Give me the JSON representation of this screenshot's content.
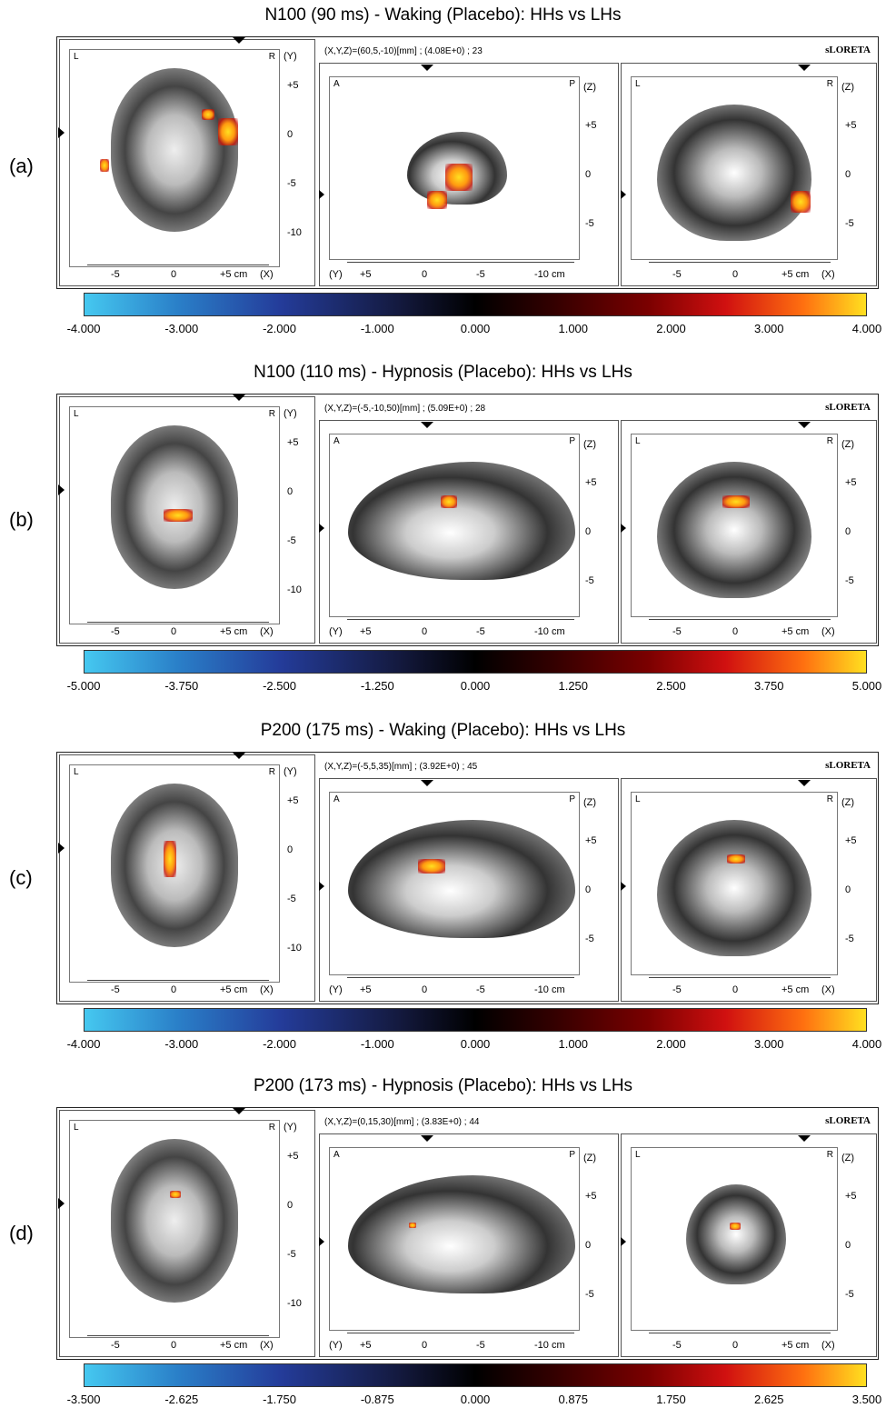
{
  "figure": {
    "panels": [
      {
        "label": "(a)",
        "title": "N100 (90 ms) - Waking (Placebo): HHs vs LHs",
        "coords": "(X,Y,Z)=(60,5,-10)[mm] ; (4.08E+0) ; 23",
        "software": "sLORETA",
        "colorbar_ticks": [
          "-4.000",
          "-3.000",
          "-2.000",
          "-1.000",
          "0.000",
          "1.000",
          "2.000",
          "3.000",
          "4.000"
        ],
        "axial": {
          "corner_left": "L",
          "corner_right": "R",
          "axis_y": "(Y)",
          "y_ticks": [
            "+5",
            "0",
            "-5",
            "-10"
          ],
          "x_ticks": [
            "-5",
            "0",
            "+5 cm",
            "(X)"
          ]
        },
        "sagittal": {
          "corner_left": "A",
          "corner_right": "P",
          "axis_z": "(Z)",
          "z_ticks": [
            "+5",
            "0",
            "-5"
          ],
          "y_ticks": [
            "(Y)",
            "+5",
            "0",
            "-5",
            "-10 cm"
          ]
        },
        "coronal": {
          "corner_left": "L",
          "corner_right": "R",
          "axis_z": "(Z)",
          "z_ticks": [
            "+5",
            "0",
            "-5"
          ],
          "x_ticks": [
            "-5",
            "0",
            "+5 cm",
            "(X)"
          ]
        }
      },
      {
        "label": "(b)",
        "title": "N100 (110 ms) - Hypnosis (Placebo): HHs vs LHs",
        "coords": "(X,Y,Z)=(-5,-10,50)[mm] ; (5.09E+0) ; 28",
        "software": "sLORETA",
        "colorbar_ticks": [
          "-5.000",
          "-3.750",
          "-2.500",
          "-1.250",
          "0.000",
          "1.250",
          "2.500",
          "3.750",
          "5.000"
        ],
        "axial": {
          "corner_left": "L",
          "corner_right": "R",
          "axis_y": "(Y)",
          "y_ticks": [
            "+5",
            "0",
            "-5",
            "-10"
          ],
          "x_ticks": [
            "-5",
            "0",
            "+5 cm",
            "(X)"
          ]
        },
        "sagittal": {
          "corner_left": "A",
          "corner_right": "P",
          "axis_z": "(Z)",
          "z_ticks": [
            "+5",
            "0",
            "-5"
          ],
          "y_ticks": [
            "(Y)",
            "+5",
            "0",
            "-5",
            "-10 cm"
          ]
        },
        "coronal": {
          "corner_left": "L",
          "corner_right": "R",
          "axis_z": "(Z)",
          "z_ticks": [
            "+5",
            "0",
            "-5"
          ],
          "x_ticks": [
            "-5",
            "0",
            "+5 cm",
            "(X)"
          ]
        }
      },
      {
        "label": "(c)",
        "title": "P200 (175 ms) - Waking (Placebo): HHs vs LHs",
        "coords": "(X,Y,Z)=(-5,5,35)[mm] ; (3.92E+0) ; 45",
        "software": "sLORETA",
        "colorbar_ticks": [
          "-4.000",
          "-3.000",
          "-2.000",
          "-1.000",
          "0.000",
          "1.000",
          "2.000",
          "3.000",
          "4.000"
        ],
        "axial": {
          "corner_left": "L",
          "corner_right": "R",
          "axis_y": "(Y)",
          "y_ticks": [
            "+5",
            "0",
            "-5",
            "-10"
          ],
          "x_ticks": [
            "-5",
            "0",
            "+5 cm",
            "(X)"
          ]
        },
        "sagittal": {
          "corner_left": "A",
          "corner_right": "P",
          "axis_z": "(Z)",
          "z_ticks": [
            "+5",
            "0",
            "-5"
          ],
          "y_ticks": [
            "(Y)",
            "+5",
            "0",
            "-5",
            "-10 cm"
          ]
        },
        "coronal": {
          "corner_left": "L",
          "corner_right": "R",
          "axis_z": "(Z)",
          "z_ticks": [
            "+5",
            "0",
            "-5"
          ],
          "x_ticks": [
            "-5",
            "0",
            "+5 cm",
            "(X)"
          ]
        }
      },
      {
        "label": "(d)",
        "title": "P200 (173 ms) - Hypnosis (Placebo): HHs vs LHs",
        "coords": "(X,Y,Z)=(0,15,30)[mm] ; (3.83E+0) ; 44",
        "software": "sLORETA",
        "colorbar_ticks": [
          "-3.500",
          "-2.625",
          "-1.750",
          "-0.875",
          "0.000",
          "0.875",
          "1.750",
          "2.625",
          "3.500"
        ],
        "axial": {
          "corner_left": "L",
          "corner_right": "R",
          "axis_y": "(Y)",
          "y_ticks": [
            "+5",
            "0",
            "-5",
            "-10"
          ],
          "x_ticks": [
            "-5",
            "0",
            "+5 cm",
            "(X)"
          ]
        },
        "sagittal": {
          "corner_left": "A",
          "corner_right": "P",
          "axis_z": "(Z)",
          "z_ticks": [
            "+5",
            "0",
            "-5"
          ],
          "y_ticks": [
            "(Y)",
            "+5",
            "0",
            "-5",
            "-10 cm"
          ]
        },
        "coronal": {
          "corner_left": "L",
          "corner_right": "R",
          "axis_z": "(Z)",
          "z_ticks": [
            "+5",
            "0",
            "-5"
          ],
          "x_ticks": [
            "-5",
            "0",
            "+5 cm",
            "(X)"
          ]
        }
      }
    ]
  }
}
